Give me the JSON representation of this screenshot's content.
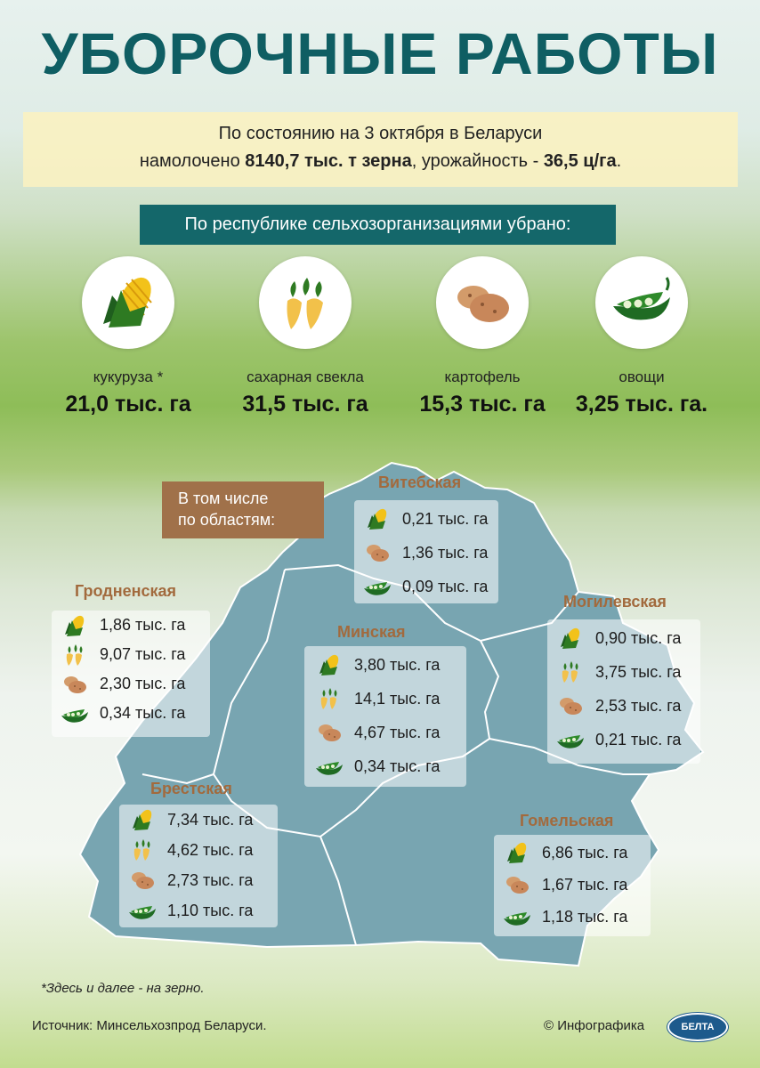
{
  "title": "УБОРОЧНЫЕ РАБОТЫ",
  "intro": {
    "line1": "По состоянию на 3 октября в Беларуси",
    "line2_prefix": "намолочено ",
    "line2_grain": "8140,7 тыс. т зерна",
    "line2_mid": ", урожайность - ",
    "line2_yield": "36,5 ц/га",
    "line2_suffix": "."
  },
  "republic_bar": "По республике сельхозорганизациями убрано:",
  "crops": [
    {
      "icon": "corn-icon",
      "name": "кукуруза *",
      "value": "21,0 тыс. га"
    },
    {
      "icon": "sugar-beet-icon",
      "name": "сахарная свекла",
      "value": "31,5 тыс. га"
    },
    {
      "icon": "potato-icon",
      "name": "картофель",
      "value": "15,3 тыс. га"
    },
    {
      "icon": "peas-icon",
      "name": "овощи",
      "value": "3,25 тыс. га."
    }
  ],
  "regions_tag": {
    "line1": "В том числе",
    "line2": "по областям:"
  },
  "regions": {
    "vitebsk": {
      "name": "Витебская",
      "rows": [
        {
          "icon": "corn-icon",
          "value": "0,21 тыс. га"
        },
        {
          "icon": "potato-icon",
          "value": "1,36 тыс. га"
        },
        {
          "icon": "peas-icon",
          "value": "0,09 тыс. га"
        }
      ]
    },
    "grodno": {
      "name": "Гродненская",
      "rows": [
        {
          "icon": "corn-icon",
          "value": "1,86 тыс. га"
        },
        {
          "icon": "sugar-beet-icon",
          "value": "9,07 тыс. га"
        },
        {
          "icon": "potato-icon",
          "value": "2,30 тыс. га"
        },
        {
          "icon": "peas-icon",
          "value": "0,34 тыс. га"
        }
      ]
    },
    "minsk": {
      "name": "Минская",
      "rows": [
        {
          "icon": "corn-icon",
          "value": "3,80 тыс. га"
        },
        {
          "icon": "sugar-beet-icon",
          "value": "14,1 тыс. га"
        },
        {
          "icon": "potato-icon",
          "value": "4,67 тыс. га"
        },
        {
          "icon": "peas-icon",
          "value": "0,34 тыс. га"
        }
      ]
    },
    "mogilev": {
      "name": "Могилевская",
      "rows": [
        {
          "icon": "corn-icon",
          "value": "0,90 тыс. га"
        },
        {
          "icon": "sugar-beet-icon",
          "value": "3,75 тыс. га"
        },
        {
          "icon": "potato-icon",
          "value": "2,53 тыс. га"
        },
        {
          "icon": "peas-icon",
          "value": "0,21 тыс. га"
        }
      ]
    },
    "brest": {
      "name": "Брестская",
      "rows": [
        {
          "icon": "corn-icon",
          "value": "7,34 тыс. га"
        },
        {
          "icon": "sugar-beet-icon",
          "value": "4,62 тыс. га"
        },
        {
          "icon": "potato-icon",
          "value": "2,73 тыс. га"
        },
        {
          "icon": "peas-icon",
          "value": "1,10 тыс. га"
        }
      ]
    },
    "gomel": {
      "name": "Гомельская",
      "rows": [
        {
          "icon": "corn-icon",
          "value": "6,86 тыс. га"
        },
        {
          "icon": "potato-icon",
          "value": "1,67 тыс. га"
        },
        {
          "icon": "peas-icon",
          "value": "1,18 тыс. га"
        }
      ]
    }
  },
  "footnote": "*Здесь и далее - на зерно.",
  "source": "Источник: Минсельхозпрод Беларуси.",
  "credit": "© Инфографика",
  "logo_text": "БЕЛТА",
  "colors": {
    "title": "#0f5e63",
    "bar": "#14676a",
    "tag": "#a0714a",
    "region_title": "#a26a3d",
    "map_fill": "#78a5b1",
    "highlight_box": "#faf1c0"
  }
}
